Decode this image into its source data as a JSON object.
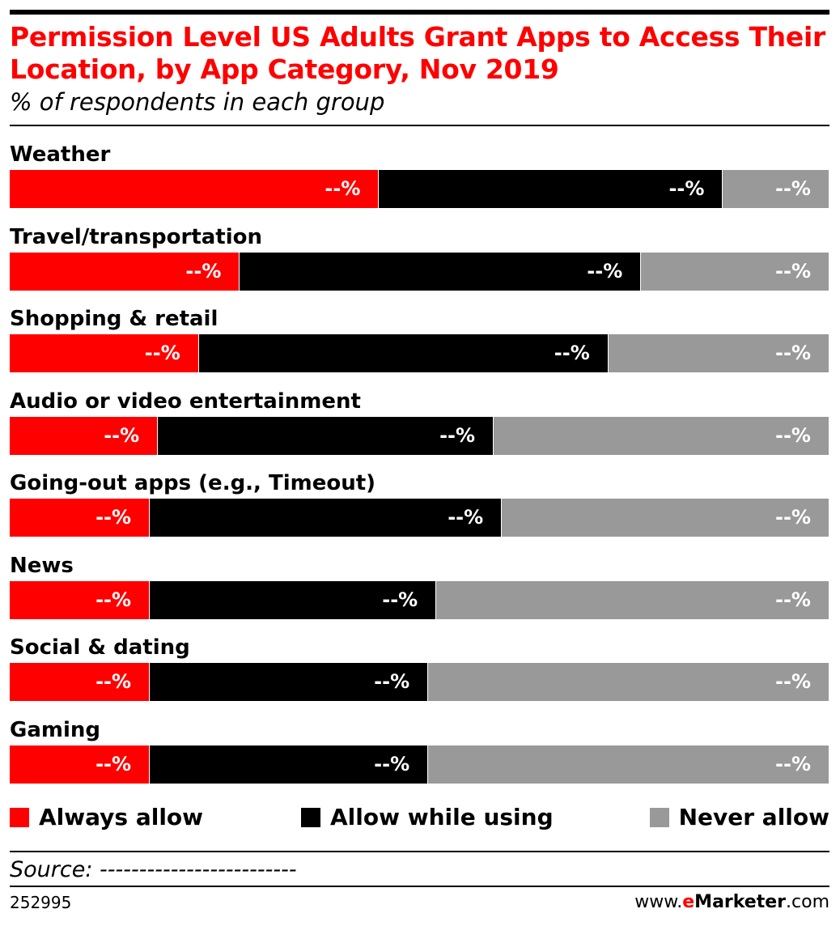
{
  "header": {
    "title": "Permission Level US Adults Grant Apps to Access Their Location, by App Category, Nov 2019",
    "subtitle": "% of respondents in each group"
  },
  "colors": {
    "always": "#ff0000",
    "while_using": "#000000",
    "never": "#999999"
  },
  "chart_data": {
    "type": "bar",
    "orientation": "horizontal",
    "stacked": "100%",
    "title": "Permission Level US Adults Grant Apps to Access Their Location, by App Category, Nov 2019",
    "subtitle": "% of respondents in each group",
    "categories": [
      "Weather",
      "Travel/transportation",
      "Shopping & retail",
      "Audio or video entertainment",
      "Going-out apps (e.g., Timeout)",
      "News",
      "Social & dating",
      "Gaming"
    ],
    "series": [
      {
        "name": "Always allow",
        "color": "#ff0000",
        "values": [
          45,
          28,
          23,
          18,
          17,
          17,
          17,
          17
        ],
        "labels": [
          "--%",
          "--%",
          "--%",
          "--%",
          "--%",
          "--%",
          "--%",
          "--%"
        ]
      },
      {
        "name": "Allow while using",
        "color": "#000000",
        "values": [
          42,
          49,
          50,
          41,
          43,
          35,
          34,
          34
        ],
        "labels": [
          "--%",
          "--%",
          "--%",
          "--%",
          "--%",
          "--%",
          "--%",
          "--%"
        ]
      },
      {
        "name": "Never allow",
        "color": "#999999",
        "values": [
          13,
          23,
          27,
          41,
          40,
          48,
          49,
          49
        ],
        "labels": [
          "--%",
          "--%",
          "--%",
          "--%",
          "--%",
          "--%",
          "--%",
          "--%"
        ]
      }
    ],
    "xlim": [
      0,
      100
    ],
    "grid": false,
    "legend": "bottom"
  },
  "legend": {
    "items": [
      {
        "label": "Always allow",
        "color": "#ff0000"
      },
      {
        "label": "Allow while using",
        "color": "#000000"
      },
      {
        "label": "Never allow",
        "color": "#999999"
      }
    ]
  },
  "footer": {
    "source": "Source: -------------------------",
    "chart_id": "252995",
    "brand_prefix": "www.",
    "brand_e": "e",
    "brand_name": "Marketer",
    "brand_suffix": ".com"
  }
}
